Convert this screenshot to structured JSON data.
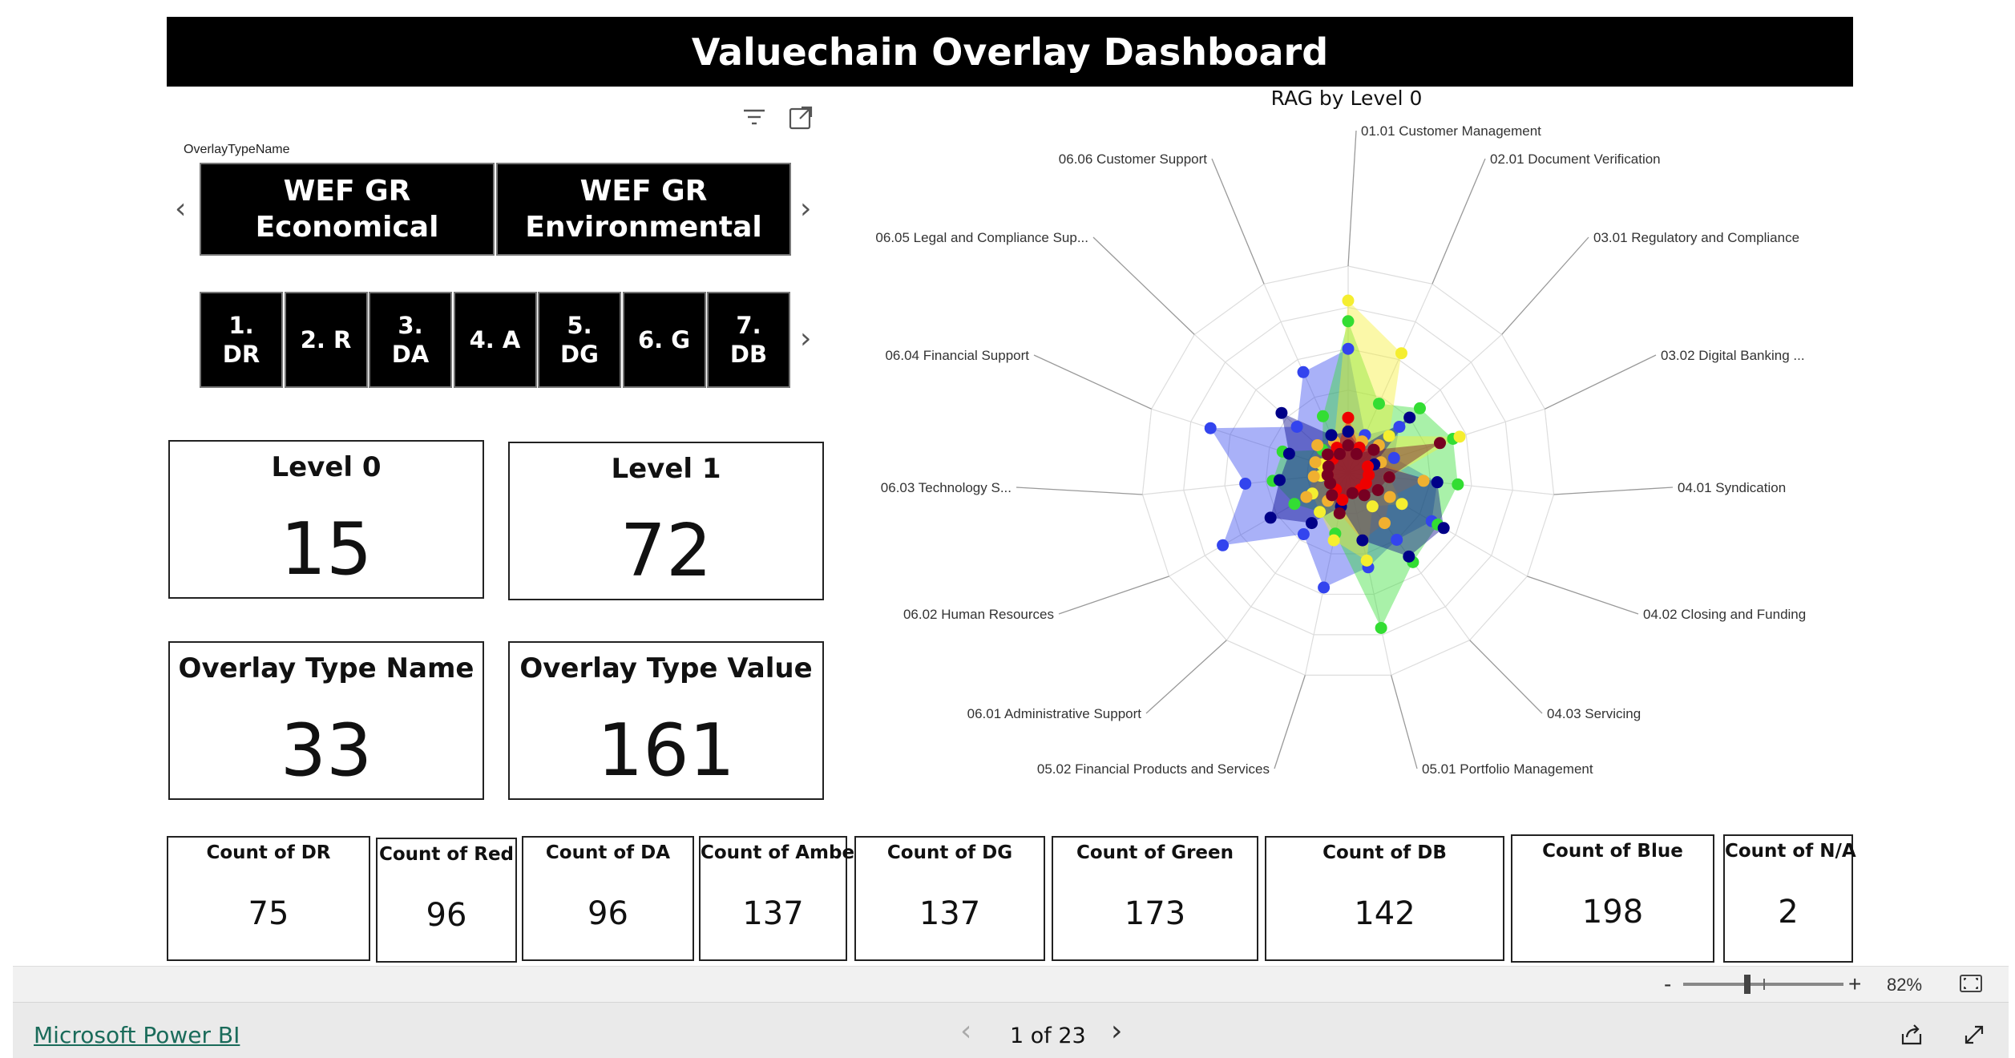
{
  "title": "Valuechain Overlay Dashboard",
  "slicer": {
    "label": "OverlayTypeName",
    "tiles": [
      "WEF GR Economical",
      "WEF GR Environmental"
    ]
  },
  "level_tiles": [
    "1. DR",
    "2. R",
    "3. DA",
    "4. A",
    "5. DG",
    "6. G",
    "7. DB"
  ],
  "icons": {
    "filter": "filter-icon",
    "focus": "focus-mode-icon",
    "prev": "chevron-left-icon",
    "next": "chevron-right-icon"
  },
  "kpi_cards": [
    {
      "title": "Level 0",
      "value": "15"
    },
    {
      "title": "Level 1",
      "value": "72"
    },
    {
      "title": "Overlay Type Name",
      "value": "33"
    },
    {
      "title": "Overlay Type Value",
      "value": "161"
    }
  ],
  "count_cards": [
    {
      "title": "Count of DR",
      "value": "75"
    },
    {
      "title": "Count of Red",
      "value": "96"
    },
    {
      "title": "Count of DA",
      "value": "96"
    },
    {
      "title": "Count of Amber",
      "value": "137"
    },
    {
      "title": "Count of DG",
      "value": "137"
    },
    {
      "title": "Count of Green",
      "value": "173"
    },
    {
      "title": "Count of DB",
      "value": "142"
    },
    {
      "title": "Count of Blue",
      "value": "198"
    },
    {
      "title": "Count of N/A",
      "value": "2"
    }
  ],
  "chart_data": {
    "type": "radar",
    "title": "RAG by Level 0",
    "categories": [
      "01.01 Customer Management",
      "02.01 Document Verification",
      "03.01 Regulatory and Compliance",
      "03.02 Digital Banking ...",
      "04.01 Syndication",
      "04.02 Closing and Funding",
      "04.03 Servicing",
      "05.01 Portfolio Management",
      "05.02 Financial Products and Services",
      "06.01 Administrative Support",
      "06.02 Human Resources",
      "06.03 Technology S...",
      "06.04 Financial Support",
      "06.05 Legal and Compliance Sup...",
      "06.06 Customer Support"
    ],
    "rmax": 30,
    "series": [
      {
        "color": "#3344ee",
        "values": [
          18,
          6,
          10,
          7,
          13,
          14,
          12,
          14,
          17,
          11,
          21,
          15,
          21,
          10,
          16
        ]
      },
      {
        "color": "#33dd33",
        "values": [
          22,
          11,
          14,
          16,
          16,
          15,
          16,
          23,
          9,
          7,
          9,
          11,
          10,
          5,
          9
        ]
      },
      {
        "color": "#f5ee30",
        "values": [
          25,
          19,
          8,
          17,
          6,
          9,
          6,
          13,
          10,
          7,
          6,
          4,
          4,
          4,
          5
        ]
      },
      {
        "color": "#f0b030",
        "values": [
          8,
          5,
          6,
          5,
          11,
          7,
          9,
          10,
          6,
          5,
          7,
          5,
          5,
          6,
          5
        ]
      },
      {
        "color": "#000088",
        "values": [
          6,
          4,
          12,
          4,
          13,
          16,
          15,
          10,
          5,
          9,
          13,
          10,
          9,
          13,
          6
        ]
      },
      {
        "color": "#ee0000",
        "values": [
          8,
          4,
          5,
          3,
          3,
          3,
          3,
          3,
          4,
          3,
          3,
          3,
          3,
          3,
          4
        ]
      },
      {
        "color": "#770022",
        "values": [
          4,
          3,
          5,
          14,
          6,
          5,
          4,
          3,
          6,
          4,
          3,
          3,
          3,
          4,
          3
        ]
      }
    ]
  },
  "zoom": {
    "minus": "-",
    "plus": "+",
    "value": "82%"
  },
  "footer": {
    "brand": "Microsoft Power BI",
    "pager": "1 of 23"
  }
}
